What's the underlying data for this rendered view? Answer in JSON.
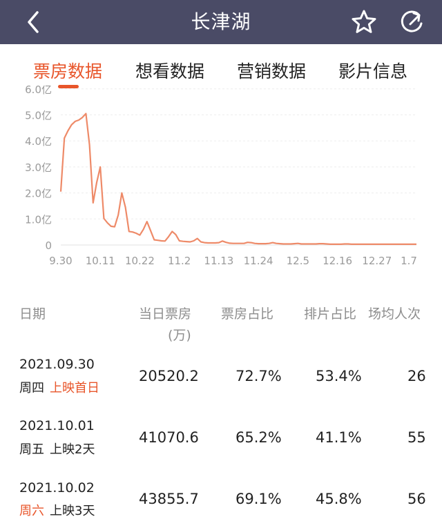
{
  "header": {
    "title": "长津湖",
    "back_icon": "chevron-left-icon",
    "star_icon": "star-outline-icon",
    "share_icon": "refresh-share-icon",
    "bg_color": "#4a4b66"
  },
  "tabs": [
    {
      "label": "票房数据",
      "active": true
    },
    {
      "label": "想看数据",
      "active": false
    },
    {
      "label": "营销数据",
      "active": false
    },
    {
      "label": "影片信息",
      "active": false
    }
  ],
  "accent_color": "#e8552a",
  "chart_data": {
    "type": "line",
    "title": "",
    "xlabel": "",
    "ylabel": "",
    "y_ticks": [
      "0",
      "1.0亿",
      "2.0亿",
      "3.0亿",
      "4.0亿",
      "5.0亿",
      "6.0亿"
    ],
    "x_ticks": [
      "9.30",
      "10.11",
      "10.22",
      "11.2",
      "11.13",
      "11.24",
      "12.5",
      "12.16",
      "12.27",
      "1.7"
    ],
    "ylim": [
      0,
      6
    ],
    "x_range": [
      "2021-09-30",
      "2022-01-07"
    ],
    "grid": true,
    "series_color": "#ee8a68",
    "values": [
      2.05,
      4.11,
      4.39,
      4.62,
      4.75,
      4.8,
      4.9,
      5.05,
      3.85,
      1.62,
      2.4,
      3.0,
      1.02,
      0.85,
      0.72,
      0.7,
      1.15,
      2.0,
      1.45,
      0.52,
      0.5,
      0.45,
      0.38,
      0.6,
      0.9,
      0.55,
      0.2,
      0.18,
      0.16,
      0.15,
      0.32,
      0.52,
      0.4,
      0.16,
      0.14,
      0.13,
      0.12,
      0.16,
      0.25,
      0.12,
      0.09,
      0.08,
      0.08,
      0.08,
      0.09,
      0.15,
      0.1,
      0.07,
      0.06,
      0.06,
      0.06,
      0.06,
      0.1,
      0.09,
      0.06,
      0.05,
      0.05,
      0.05,
      0.06,
      0.09,
      0.06,
      0.05,
      0.04,
      0.04,
      0.04,
      0.05,
      0.06,
      0.04,
      0.04,
      0.04,
      0.04,
      0.04,
      0.05,
      0.05,
      0.04,
      0.03,
      0.03,
      0.03,
      0.03,
      0.04,
      0.04,
      0.03,
      0.03,
      0.03,
      0.03,
      0.03,
      0.03,
      0.03,
      0.03,
      0.03,
      0.03,
      0.03,
      0.03,
      0.03,
      0.03,
      0.03,
      0.03,
      0.03,
      0.03,
      0.03
    ]
  },
  "table": {
    "headers": {
      "date": "日期",
      "box_office": "当日票房",
      "box_office_unit": "(万)",
      "share": "票房占比",
      "screening": "排片占比",
      "avg": "场均人次"
    },
    "rows": [
      {
        "date": "2021.09.30",
        "weekday": "周四",
        "weekday_highlight": false,
        "release": "上映首日",
        "release_highlight": true,
        "box_office": "20520.2",
        "share": "72.7%",
        "screening": "53.4%",
        "avg": "26"
      },
      {
        "date": "2021.10.01",
        "weekday": "周五",
        "weekday_highlight": false,
        "release": "上映2天",
        "release_highlight": false,
        "box_office": "41070.6",
        "share": "65.2%",
        "screening": "41.1%",
        "avg": "55"
      },
      {
        "date": "2021.10.02",
        "weekday": "周六",
        "weekday_highlight": true,
        "release": "上映3天",
        "release_highlight": false,
        "box_office": "43855.7",
        "share": "69.1%",
        "screening": "45.8%",
        "avg": "56"
      }
    ]
  }
}
